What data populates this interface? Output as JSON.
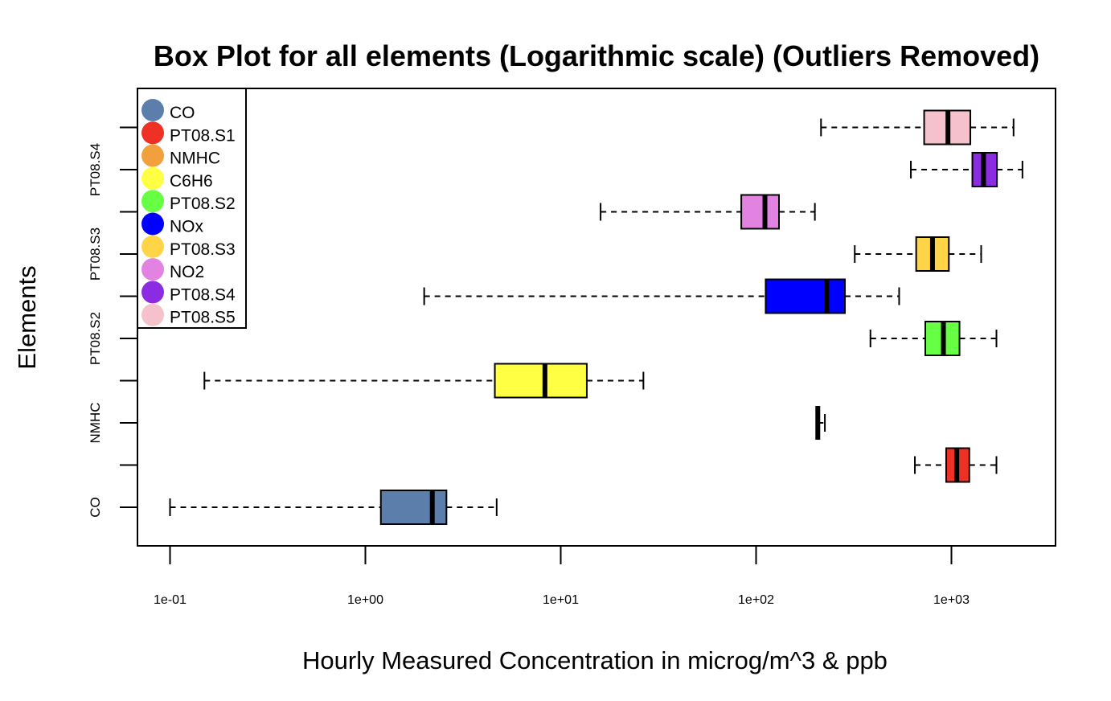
{
  "chart_data": {
    "type": "boxplot",
    "orientation": "horizontal",
    "title": "Box Plot for all elements (Logarithmic scale) (Outliers Removed)",
    "xlabel": "Hourly Measured Concentration in microg/m^3 & ppb",
    "ylabel": "Elements",
    "x_scale": "log10",
    "xlim": [
      0.08,
      2500
    ],
    "x_ticks": [
      0.1,
      1,
      10,
      100,
      1000
    ],
    "x_tick_labels": [
      "1e-01",
      "1e+00",
      "1e+01",
      "1e+02",
      "1e+03"
    ],
    "y_tick_labels": [
      "CO",
      "NMHC",
      "PT08.S2",
      "PT08.S3",
      "PT08.S4"
    ],
    "y_tick_label_positions": [
      1,
      3,
      5,
      7,
      9
    ],
    "legend_position": "top-left",
    "series": [
      {
        "name": "CO",
        "color": "#5b7faa",
        "min": 0.1,
        "q1": 1.2,
        "median": 2.2,
        "q3": 2.6,
        "max": 4.7
      },
      {
        "name": "PT08.S1",
        "color": "#ee3124",
        "min": 650,
        "q1": 940,
        "median": 1065,
        "q3": 1235,
        "max": 1700
      },
      {
        "name": "NMHC",
        "color": "#f2a03d",
        "min": 207,
        "q1": 207,
        "median": 207,
        "q3": 207,
        "max": 225
      },
      {
        "name": "C6H6",
        "color": "#ffff44",
        "min": 0.15,
        "q1": 4.6,
        "median": 8.3,
        "q3": 13.6,
        "max": 26.5
      },
      {
        "name": "PT08.S2",
        "color": "#66ff44",
        "min": 385,
        "q1": 735,
        "median": 910,
        "q3": 1100,
        "max": 1700
      },
      {
        "name": "NOx",
        "color": "#0000ff",
        "min": 2,
        "q1": 112,
        "median": 230,
        "q3": 285,
        "max": 540
      },
      {
        "name": "PT08.S3",
        "color": "#ffd447",
        "min": 320,
        "q1": 660,
        "median": 800,
        "q3": 970,
        "max": 1420
      },
      {
        "name": "NO2",
        "color": "#e283e2",
        "min": 16,
        "q1": 84,
        "median": 111,
        "q3": 131,
        "max": 200
      },
      {
        "name": "PT08.S4",
        "color": "#8b2be2",
        "min": 620,
        "q1": 1280,
        "median": 1460,
        "q3": 1710,
        "max": 2310
      },
      {
        "name": "PT08.S5",
        "color": "#f5c2cb",
        "min": 215,
        "q1": 725,
        "median": 960,
        "q3": 1250,
        "max": 2080
      }
    ]
  }
}
